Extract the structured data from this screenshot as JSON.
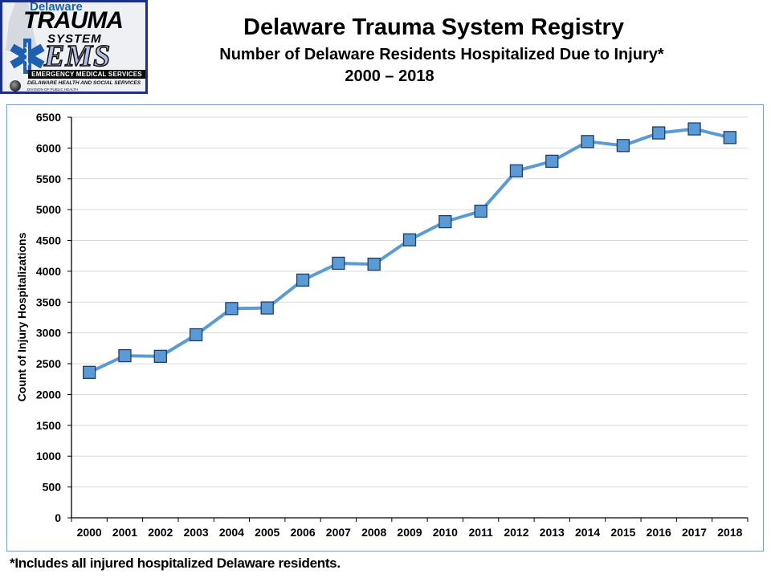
{
  "logo": {
    "delaware": "Delaware",
    "trauma": "TRAUMA",
    "system": "SYSTEM",
    "ems": "EMS",
    "ems_bar": "EMERGENCY MEDICAL SERVICES",
    "dhss": "DELAWARE HEALTH AND SOCIAL SERVICES",
    "dph": "DIVISION OF PUBLIC HEALTH"
  },
  "header": {
    "title": "Delaware Trauma System Registry",
    "subtitle": "Number of Delaware Residents Hospitalized Due to Injury*",
    "years": "2000 – 2018"
  },
  "footnote": "*Includes all injured hospitalized Delaware residents.",
  "colors": {
    "series": "#5b9bd5",
    "marker_border": "#1f3d66",
    "grid": "#d9d9d9",
    "axis": "#000000",
    "frame": "#7a9dc0"
  },
  "chart_data": {
    "type": "line",
    "title": "Delaware Trauma System Registry",
    "subtitle": "Number of Delaware Residents Hospitalized Due to Injury*",
    "xlabel": "",
    "ylabel": "Count of Injury Hospitalizations",
    "ylim": [
      0,
      6500
    ],
    "yticks": [
      0,
      500,
      1000,
      1500,
      2000,
      2500,
      3000,
      3500,
      4000,
      4500,
      5000,
      5500,
      6000,
      6500
    ],
    "grid": true,
    "legend": "none",
    "categories": [
      "2000",
      "2001",
      "2002",
      "2003",
      "2004",
      "2005",
      "2006",
      "2007",
      "2008",
      "2009",
      "2010",
      "2011",
      "2012",
      "2013",
      "2014",
      "2015",
      "2016",
      "2017",
      "2018"
    ],
    "series": [
      {
        "name": "Injury Hospitalizations",
        "marker": "square",
        "values": [
          2360,
          2630,
          2620,
          2970,
          3395,
          3405,
          3857,
          4130,
          4115,
          4510,
          4805,
          4975,
          5630,
          5785,
          6105,
          6040,
          6245,
          6310,
          6170
        ]
      }
    ]
  }
}
